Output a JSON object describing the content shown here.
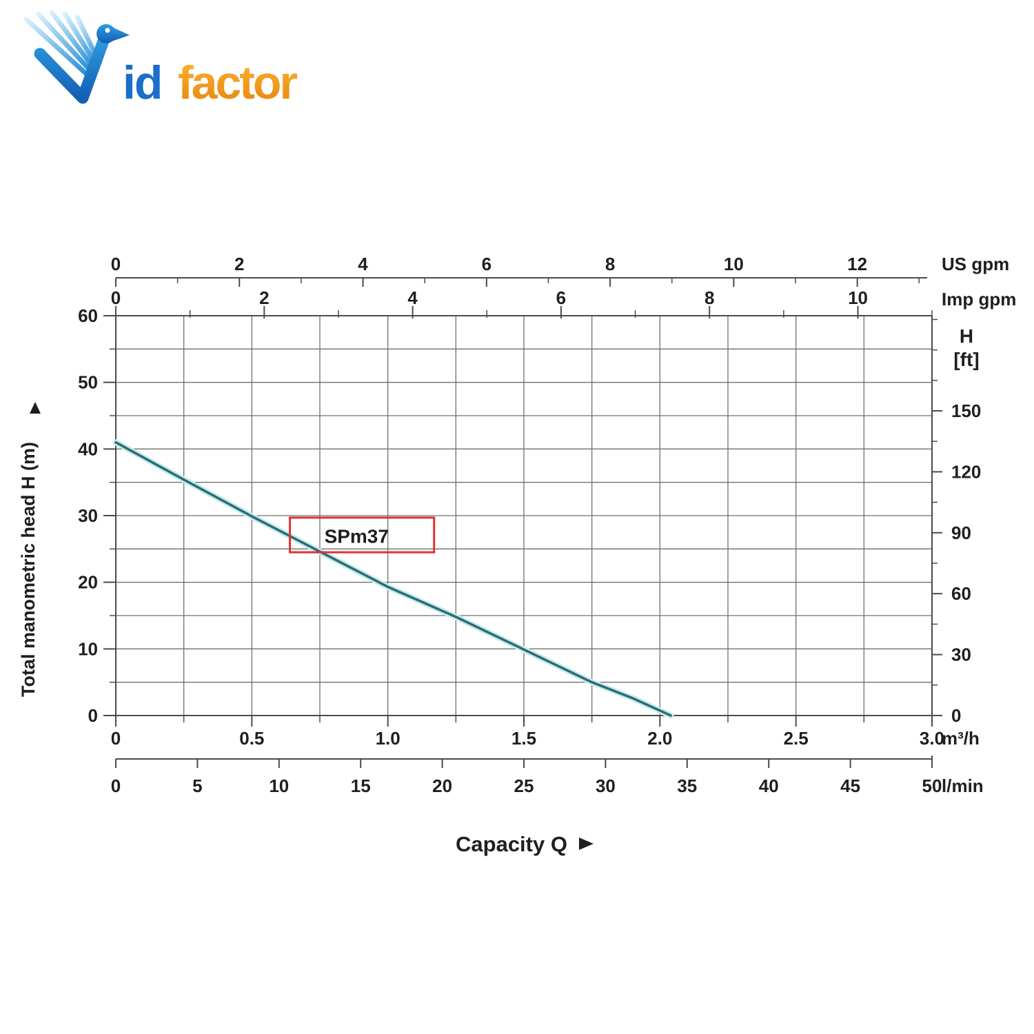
{
  "logo": {
    "part1": "id",
    "part2": "factor",
    "blue": "#1a6fc8",
    "orange_top": "#f7b733",
    "orange_bottom": "#e8820c"
  },
  "capacity": {
    "label": "Capacity Q"
  },
  "chart_data": {
    "type": "line",
    "title": "",
    "x_range_m3h": [
      0,
      3.0
    ],
    "y_range_m": [
      0,
      60
    ],
    "grid": {
      "x_step_m3h": 0.25,
      "y_step_m": 5
    },
    "colors": {
      "curve": "#2d6e71",
      "curve_halo": "#c9ecf0",
      "grid": "#6f6f6f",
      "border": "#4a4a4a",
      "text": "#1f1f1f",
      "annotation_border": "#e03131"
    },
    "series": [
      {
        "name": "SPm37",
        "points_m3h_vs_m": [
          [
            0,
            41
          ],
          [
            0.25,
            35.4
          ],
          [
            0.5,
            29.9
          ],
          [
            0.75,
            24.6
          ],
          [
            1.0,
            19.3
          ],
          [
            1.25,
            14.8
          ],
          [
            1.5,
            9.9
          ],
          [
            1.75,
            5.0
          ],
          [
            1.9,
            2.6
          ],
          [
            2.04,
            0
          ]
        ]
      }
    ],
    "annotation": {
      "text": "SPm37",
      "box_x0_m3h": 0.64,
      "box_x1_m3h": 1.17,
      "box_y0_m": 24.5,
      "box_y1_m": 29.7,
      "text_x_m3h": 0.885,
      "text_y_m": 25.9
    },
    "axes": {
      "us_gpm": {
        "unit": "US gpm",
        "m3h_per_unit": 0.22712,
        "major_values": [
          0,
          2,
          4,
          6,
          8,
          10,
          12
        ],
        "major_labels": [
          "0",
          "2",
          "4",
          "6",
          "8",
          "10",
          "12"
        ],
        "minor_values": [
          1,
          3,
          5,
          7,
          9,
          11,
          13
        ]
      },
      "imp_gpm": {
        "unit": "Imp gpm",
        "m3h_per_unit": 0.27277,
        "major_values": [
          0,
          2,
          4,
          6,
          8,
          10
        ],
        "major_labels": [
          "0",
          "2",
          "4",
          "6",
          "8",
          "10"
        ],
        "minor_values": [
          1,
          3,
          5,
          7,
          9,
          11
        ]
      },
      "m3h": {
        "unit": "m³/h",
        "m3h_per_unit": 1,
        "major_values": [
          0,
          0.5,
          1.0,
          1.5,
          2.0,
          2.5,
          3.0
        ],
        "major_labels": [
          "0",
          "0.5",
          "1.0",
          "1.5",
          "2.0",
          "2.5",
          "3.0"
        ],
        "minor_values": [
          0.25,
          0.75,
          1.25,
          1.75,
          2.25,
          2.75
        ]
      },
      "l_min": {
        "unit": "l/min",
        "m3h_per_unit": 0.06,
        "major_values": [
          0,
          5,
          10,
          15,
          20,
          25,
          30,
          35,
          40,
          45,
          50
        ],
        "major_labels": [
          "0",
          "5",
          "10",
          "15",
          "20",
          "25",
          "30",
          "35",
          "40",
          "45",
          "50"
        ],
        "minor_values": []
      },
      "head_m": {
        "title": "Total manometric head H (m)",
        "major_values": [
          0,
          10,
          20,
          30,
          40,
          50,
          60
        ],
        "major_labels": [
          "0",
          "10",
          "20",
          "30",
          "40",
          "50",
          "60"
        ],
        "minor_values": [
          5,
          15,
          25,
          35,
          45,
          55
        ]
      },
      "head_ft": {
        "header_line1": "H",
        "header_line2": "[ft]",
        "m_per_unit": 0.3048,
        "major_values": [
          0,
          30,
          60,
          90,
          120,
          150
        ],
        "major_labels": [
          "0",
          "30",
          "60",
          "90",
          "120",
          "150"
        ],
        "minor_values": [
          15,
          45,
          75,
          105,
          135,
          165,
          180,
          195
        ]
      }
    }
  }
}
